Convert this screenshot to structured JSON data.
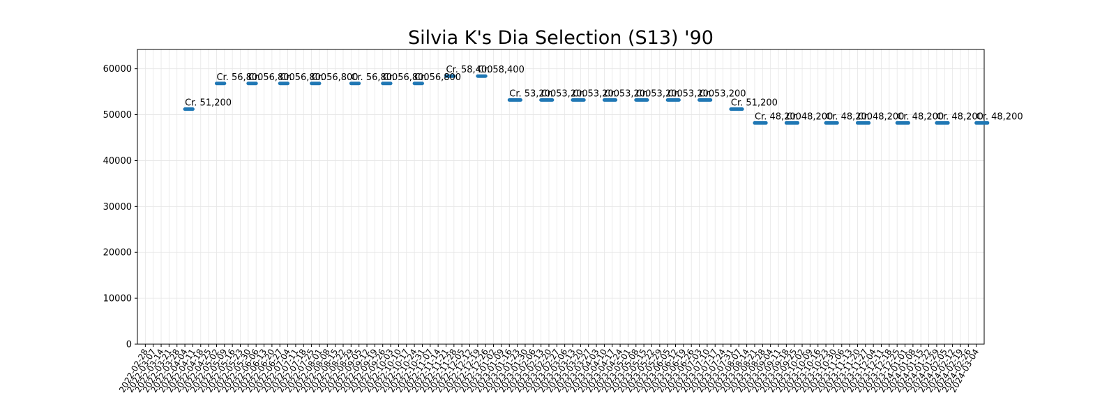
{
  "chart_data": {
    "type": "line",
    "title": "Silvia K's Dia Selection (S13) '90",
    "xlabel": "",
    "ylabel": "",
    "ylim": [
      0,
      64200
    ],
    "yticks": [
      0,
      10000,
      20000,
      30000,
      40000,
      50000,
      60000
    ],
    "grid": true,
    "legend": "none",
    "series_color": "#1f77b4",
    "x_dates": [
      "2022-02-28",
      "2022-03-07",
      "2022-03-14",
      "2022-03-21",
      "2022-03-28",
      "2022-04-04",
      "2022-04-11",
      "2022-04-18",
      "2022-04-25",
      "2022-05-02",
      "2022-05-09",
      "2022-05-16",
      "2022-05-23",
      "2022-05-30",
      "2022-06-06",
      "2022-06-13",
      "2022-06-20",
      "2022-06-27",
      "2022-07-04",
      "2022-07-11",
      "2022-07-18",
      "2022-07-25",
      "2022-08-01",
      "2022-08-08",
      "2022-08-15",
      "2022-08-22",
      "2022-08-29",
      "2022-09-05",
      "2022-09-12",
      "2022-09-19",
      "2022-09-26",
      "2022-10-03",
      "2022-10-10",
      "2022-10-17",
      "2022-10-24",
      "2022-10-31",
      "2022-11-07",
      "2022-11-14",
      "2022-11-21",
      "2022-11-28",
      "2022-12-05",
      "2022-12-12",
      "2022-12-19",
      "2022-12-26",
      "2023-01-02",
      "2023-01-09",
      "2023-01-16",
      "2023-01-23",
      "2023-01-30",
      "2023-02-06",
      "2023-02-13",
      "2023-02-20",
      "2023-02-27",
      "2023-03-06",
      "2023-03-13",
      "2023-03-20",
      "2023-03-27",
      "2023-04-03",
      "2023-04-10",
      "2023-04-17",
      "2023-04-24",
      "2023-05-01",
      "2023-05-08",
      "2023-05-15",
      "2023-05-22",
      "2023-05-29",
      "2023-06-05",
      "2023-06-12",
      "2023-06-19",
      "2023-06-26",
      "2023-07-03",
      "2023-07-10",
      "2023-07-17",
      "2023-07-24",
      "2023-07-31",
      "2023-08-07",
      "2023-08-14",
      "2023-08-21",
      "2023-08-28",
      "2023-09-04",
      "2023-09-11",
      "2023-09-18",
      "2023-09-25",
      "2023-10-02",
      "2023-10-09",
      "2023-10-16",
      "2023-10-23",
      "2023-10-30",
      "2023-11-06",
      "2023-11-13",
      "2023-11-20",
      "2023-11-27",
      "2023-12-04",
      "2023-12-11",
      "2023-12-18",
      "2023-12-25",
      "2024-01-01",
      "2024-01-08",
      "2024-01-15",
      "2024-01-22",
      "2024-01-29",
      "2024-02-05",
      "2024-02-12",
      "2024-02-19",
      "2024-02-26",
      "2024-03-04"
    ],
    "segments": [
      {
        "start": "2022-04-04",
        "end": "2022-04-11",
        "value": 51200,
        "label": "Cr. 51,200"
      },
      {
        "start": "2022-05-02",
        "end": "2022-05-09",
        "value": 56800,
        "label": "Cr. 56,800"
      },
      {
        "start": "2022-05-30",
        "end": "2022-06-06",
        "value": 56800,
        "label": "Cr. 56,800"
      },
      {
        "start": "2022-06-27",
        "end": "2022-07-04",
        "value": 56800,
        "label": "Cr. 56,800"
      },
      {
        "start": "2022-07-25",
        "end": "2022-08-01",
        "value": 56800,
        "label": "Cr. 56,800"
      },
      {
        "start": "2022-08-29",
        "end": "2022-09-05",
        "value": 56800,
        "label": "Cr. 56,800"
      },
      {
        "start": "2022-09-26",
        "end": "2022-10-03",
        "value": 56800,
        "label": "Cr. 56,800"
      },
      {
        "start": "2022-10-24",
        "end": "2022-10-31",
        "value": 56800,
        "label": "Cr. 56,800"
      },
      {
        "start": "2022-11-21",
        "end": "2022-11-28",
        "value": 58400,
        "label": "Cr. 58,400"
      },
      {
        "start": "2022-12-19",
        "end": "2022-12-26",
        "value": 58400,
        "label": "Cr. 58,400"
      },
      {
        "start": "2023-01-16",
        "end": "2023-01-26",
        "value": 53200,
        "label": "Cr. 53,200"
      },
      {
        "start": "2023-02-13",
        "end": "2023-02-23",
        "value": 53200,
        "label": "Cr. 53,200"
      },
      {
        "start": "2023-03-13",
        "end": "2023-03-23",
        "value": 53200,
        "label": "Cr. 53,200"
      },
      {
        "start": "2023-04-10",
        "end": "2023-04-20",
        "value": 53200,
        "label": "Cr. 53,200"
      },
      {
        "start": "2023-05-08",
        "end": "2023-05-18",
        "value": 53200,
        "label": "Cr. 53,200"
      },
      {
        "start": "2023-06-05",
        "end": "2023-06-15",
        "value": 53200,
        "label": "Cr. 53,200"
      },
      {
        "start": "2023-07-03",
        "end": "2023-07-13",
        "value": 53200,
        "label": "Cr. 53,200"
      },
      {
        "start": "2023-07-31",
        "end": "2023-08-10",
        "value": 51200,
        "label": "Cr. 51,200"
      },
      {
        "start": "2023-08-21",
        "end": "2023-08-31",
        "value": 48200,
        "label": "Cr. 48,200"
      },
      {
        "start": "2023-09-18",
        "end": "2023-09-28",
        "value": 48200,
        "label": "Cr. 48,200"
      },
      {
        "start": "2023-10-23",
        "end": "2023-11-02",
        "value": 48200,
        "label": "Cr. 48,200"
      },
      {
        "start": "2023-11-20",
        "end": "2023-11-30",
        "value": 48200,
        "label": "Cr. 48,200"
      },
      {
        "start": "2023-12-25",
        "end": "2024-01-04",
        "value": 48200,
        "label": "Cr. 48,200"
      },
      {
        "start": "2024-01-29",
        "end": "2024-02-08",
        "value": 48200,
        "label": "Cr. 48,200"
      },
      {
        "start": "2024-03-04",
        "end": "2024-03-14",
        "value": 48200,
        "label": "Cr. 48,200"
      }
    ]
  }
}
